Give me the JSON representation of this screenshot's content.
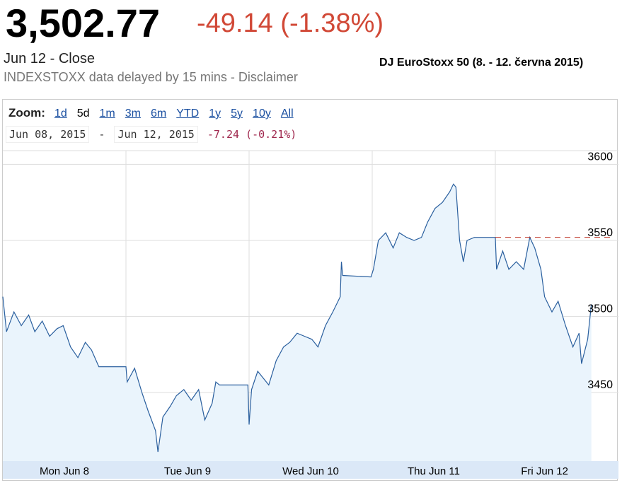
{
  "header": {
    "price": "3,502.77",
    "change": "-49.14 (-1.38%)",
    "status": "Jun 12 - Close",
    "delay_note": "INDEXSTOXX data delayed by 15 mins - ",
    "disclaimer": "Disclaimer",
    "caption": "DJ EuroStoxx 50 (8. - 12. června 2015)"
  },
  "controls": {
    "zoom_label": "Zoom:",
    "zoom_options": [
      "1d",
      "5d",
      "1m",
      "3m",
      "6m",
      "YTD",
      "1y",
      "5y",
      "10y",
      "All"
    ],
    "selected": "5d",
    "range_start": "Jun 08, 2015",
    "range_sep": "-",
    "range_end": "Jun 12, 2015",
    "range_change": "-7.24 (-0.21%)"
  },
  "chart_data": {
    "type": "line",
    "color": "#2a5f9e",
    "fill": "#eaf4fc",
    "x": [
      0,
      0.03,
      0.09,
      0.15,
      0.21,
      0.26,
      0.32,
      0.38,
      0.44,
      0.49,
      0.55,
      0.61,
      0.67,
      0.72,
      0.78,
      1.0,
      1.01,
      1.07,
      1.13,
      1.18,
      1.24,
      1.26,
      1.3,
      1.36,
      1.41,
      1.47,
      1.53,
      1.59,
      1.64,
      1.7,
      1.73,
      1.76,
      1.99,
      2.0,
      2.02,
      2.07,
      2.16,
      2.22,
      2.28,
      2.33,
      2.39,
      2.45,
      2.51,
      2.56,
      2.62,
      2.68,
      2.74,
      2.75,
      2.76,
      2.99,
      3.01,
      3.05,
      3.11,
      3.17,
      3.22,
      3.28,
      3.34,
      3.4,
      3.45,
      3.51,
      3.57,
      3.63,
      3.66,
      3.68,
      3.71,
      3.74,
      3.77,
      3.83,
      4.0,
      4.01,
      4.06,
      4.11,
      4.17,
      4.23,
      4.28,
      4.32,
      4.37,
      4.4,
      4.46,
      4.51,
      4.57,
      4.63,
      4.68,
      4.7,
      4.75,
      4.78
    ],
    "series": [
      {
        "values": [
          3513,
          3490,
          3503,
          3494,
          3501,
          3490,
          3497,
          3487,
          3492,
          3494,
          3480,
          3473,
          3483,
          3478,
          3467,
          3467,
          3457,
          3466,
          3450,
          3438,
          3425,
          3411,
          3434,
          3441,
          3448,
          3452,
          3445,
          3452,
          3432,
          3443,
          3457,
          3455,
          3455,
          3429,
          3452,
          3464,
          3455,
          3471,
          3480,
          3483,
          3489,
          3487,
          3485,
          3480,
          3494,
          3503,
          3513,
          3536,
          3527,
          3526,
          3531,
          3550,
          3555,
          3545,
          3555,
          3552,
          3550,
          3552,
          3562,
          3571,
          3575,
          3582,
          3587,
          3585,
          3550,
          3536,
          3550,
          3552,
          3552,
          3531,
          3543,
          3531,
          3536,
          3531,
          3552,
          3545,
          3531,
          3513,
          3503,
          3510,
          3494,
          3480,
          3489,
          3469,
          3485,
          3508
        ]
      }
    ],
    "xlim": [
      0,
      5
    ],
    "ylim": [
      3405,
      3609
    ],
    "xticks": [
      {
        "value": 0.5,
        "label": "Mon Jun 8"
      },
      {
        "value": 1.5,
        "label": "Tue Jun 9"
      },
      {
        "value": 2.5,
        "label": "Wed Jun 10"
      },
      {
        "value": 3.5,
        "label": "Thu Jun 11"
      },
      {
        "value": 4.4,
        "label": "Fri Jun 12"
      }
    ],
    "xgrid": [
      1,
      2,
      3,
      4
    ],
    "yticks": [
      3450,
      3500,
      3550,
      3600
    ],
    "reference_line": {
      "value": 3552,
      "start": 4.0
    },
    "grid": true
  }
}
